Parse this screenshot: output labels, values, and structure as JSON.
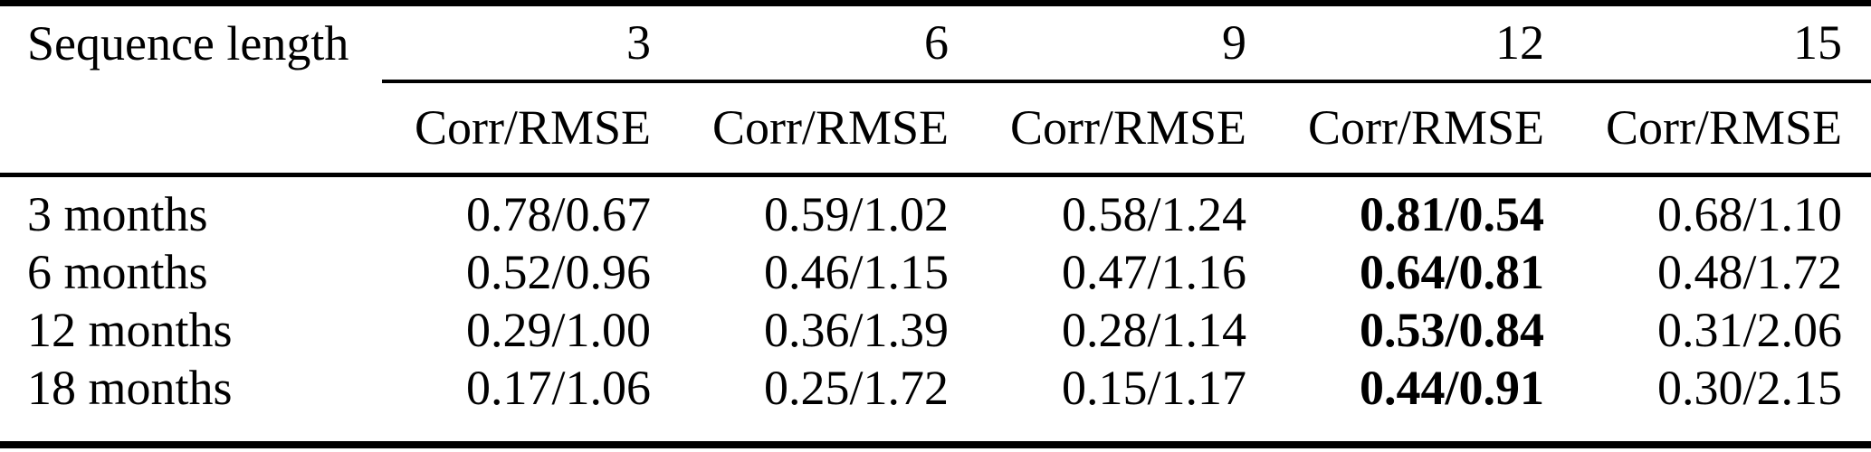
{
  "table": {
    "corner_header": "Sequence length",
    "col_headers": [
      "3",
      "6",
      "9",
      "12",
      "15"
    ],
    "sub_headers": [
      "Corr/RMSE",
      "Corr/RMSE",
      "Corr/RMSE",
      "Corr/RMSE",
      "Corr/RMSE"
    ],
    "rows": [
      {
        "label": "3 months",
        "values": [
          "0.78/0.67",
          "0.59/1.02",
          "0.58/1.24",
          "0.81/0.54",
          "0.68/1.10"
        ],
        "bold_column_index": 3
      },
      {
        "label": "6 months",
        "values": [
          "0.52/0.96",
          "0.46/1.15",
          "0.47/1.16",
          "0.64/0.81",
          "0.48/1.72"
        ],
        "bold_column_index": 3
      },
      {
        "label": "12 months",
        "values": [
          "0.29/1.00",
          "0.36/1.39",
          "0.28/1.14",
          "0.53/0.84",
          "0.31/2.06"
        ],
        "bold_column_index": 3
      },
      {
        "label": "18 months",
        "values": [
          "0.17/1.06",
          "0.25/1.72",
          "0.15/1.17",
          "0.44/0.91",
          "0.30/2.15"
        ],
        "bold_column_index": 3
      }
    ],
    "colors": {
      "text": "#000000",
      "background": "#ffffff",
      "rule": "#000000"
    }
  }
}
